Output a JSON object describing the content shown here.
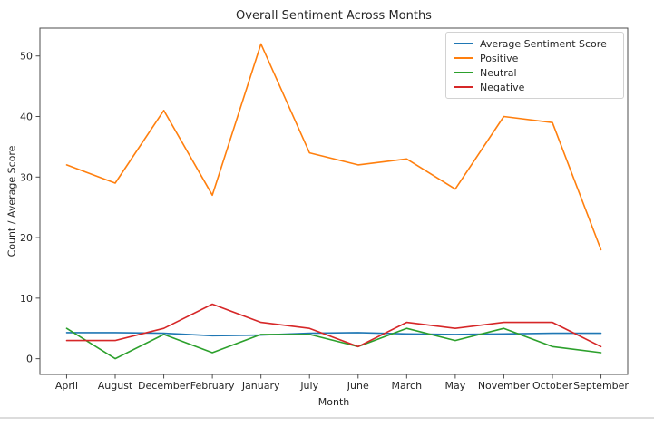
{
  "chart_data": {
    "type": "line",
    "title": "Overall Sentiment Across Months",
    "xlabel": "Month",
    "ylabel": "Count / Average Score",
    "categories": [
      "April",
      "August",
      "December",
      "February",
      "January",
      "July",
      "June",
      "March",
      "May",
      "November",
      "October",
      "September"
    ],
    "series": [
      {
        "name": "Average Sentiment Score",
        "color": "#1f77b4",
        "values": [
          4.3,
          4.3,
          4.2,
          3.8,
          3.9,
          4.2,
          4.3,
          4.1,
          4.0,
          4.1,
          4.2,
          4.2
        ]
      },
      {
        "name": "Positive",
        "color": "#ff7f0e",
        "values": [
          32,
          29,
          41,
          27,
          52,
          34,
          32,
          33,
          28,
          40,
          39,
          18
        ]
      },
      {
        "name": "Neutral",
        "color": "#2ca02c",
        "values": [
          5,
          0,
          4,
          1,
          4,
          4,
          2,
          5,
          3,
          5,
          2,
          1
        ]
      },
      {
        "name": "Negative",
        "color": "#d62728",
        "values": [
          3,
          3,
          5,
          9,
          6,
          5,
          2,
          6,
          5,
          6,
          6,
          2
        ]
      }
    ],
    "yticks": [
      0,
      10,
      20,
      30,
      40,
      50
    ],
    "ylim": [
      -2.6,
      54.6
    ],
    "legend_position": "upper right",
    "grid": false,
    "frame_color": "#4d4d4d"
  }
}
